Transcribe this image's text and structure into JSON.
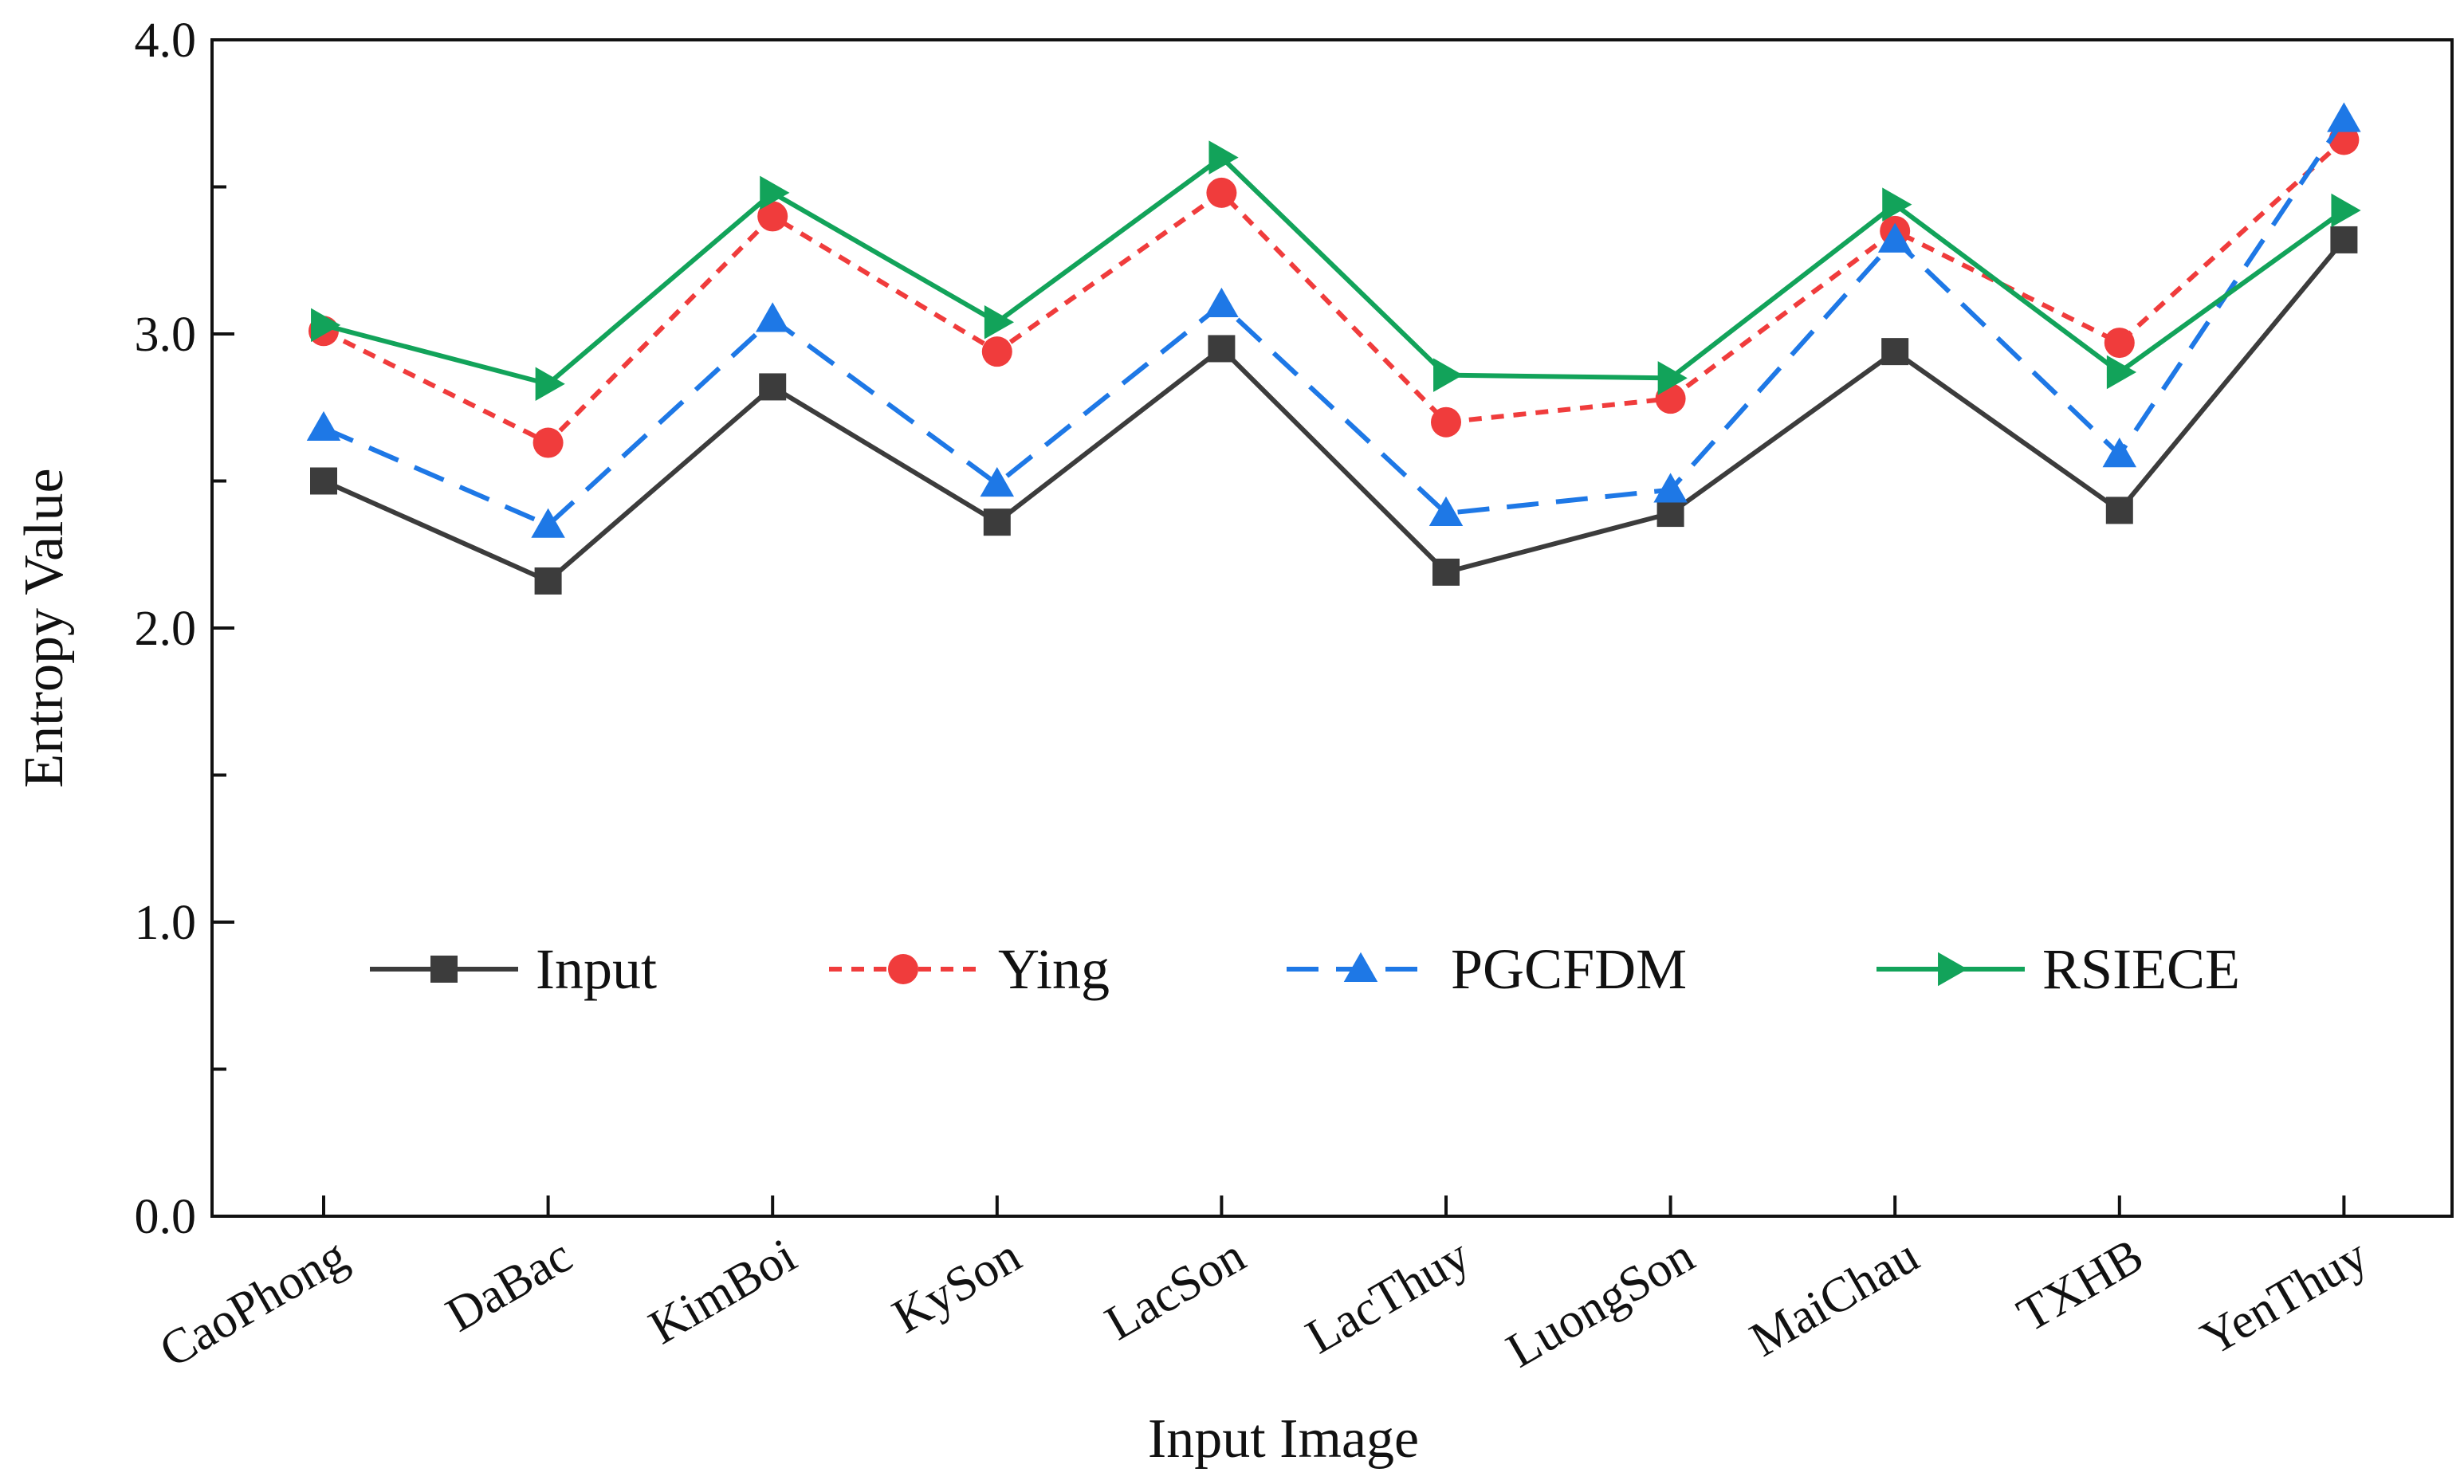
{
  "chart_data": {
    "type": "line",
    "title": "",
    "xlabel": "Input Image",
    "ylabel": "Entropy Value",
    "ylim": [
      0,
      4
    ],
    "yticks": [
      "0.0",
      "1.0",
      "2.0",
      "3.0",
      "4.0"
    ],
    "grid": false,
    "legend_position": "lower-center-inside",
    "categories": [
      "CaoPhong",
      "DaBac",
      "KimBoi",
      "KySon",
      "LacSon",
      "LacThuy",
      "LuongSon",
      "MaiChau",
      "TXHB",
      "YenThuy"
    ],
    "series": [
      {
        "name": "Input",
        "color": "#3c3c3c",
        "marker": "square",
        "dash": "solid",
        "values": [
          2.5,
          2.16,
          2.82,
          2.36,
          2.95,
          2.19,
          2.39,
          2.94,
          2.4,
          3.32
        ]
      },
      {
        "name": "Ying",
        "color": "#f03c3c",
        "marker": "circle",
        "dash": "dotted",
        "values": [
          3.01,
          2.63,
          3.4,
          2.94,
          3.48,
          2.7,
          2.78,
          3.35,
          2.97,
          3.66
        ]
      },
      {
        "name": "PGCFDM",
        "color": "#1e78e6",
        "marker": "triangle-up",
        "dash": "dashed",
        "values": [
          2.68,
          2.35,
          3.05,
          2.49,
          3.1,
          2.39,
          2.47,
          3.32,
          2.59,
          3.73
        ]
      },
      {
        "name": "RSIECE",
        "color": "#12a35a",
        "marker": "triangle-right",
        "dash": "solid",
        "values": [
          3.03,
          2.83,
          3.48,
          3.04,
          3.6,
          2.86,
          2.85,
          3.44,
          2.87,
          3.42
        ]
      }
    ]
  }
}
